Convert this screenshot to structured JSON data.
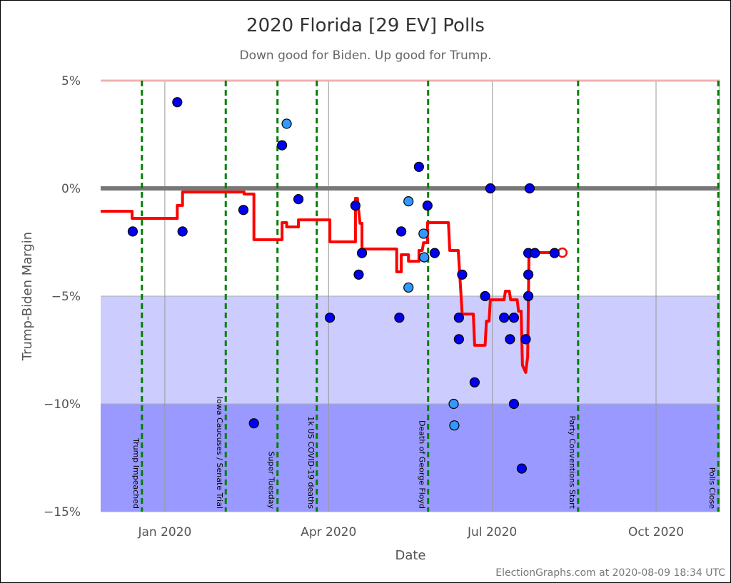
{
  "chart_data": {
    "type": "scatter",
    "title": "2020 Florida [29 EV] Polls",
    "subtitle": "Down good for Biden. Up good for Trump.",
    "x_label": "Date",
    "y_label": "Trump-Biden Margin",
    "footer": "ElectionGraphs.com at 2020-08-09 18:34 UTC",
    "xlim": [
      2019.902,
      2020.847
    ],
    "ylim": [
      -15,
      5
    ],
    "xticks": [
      {
        "value": 2020.0,
        "label": "Jan 2020"
      },
      {
        "value": 2020.25,
        "label": "Apr 2020"
      },
      {
        "value": 2020.5,
        "label": "Jul 2020"
      },
      {
        "value": 2020.75,
        "label": "Oct 2020"
      }
    ],
    "yticks": [
      {
        "value": 5,
        "label": "5%"
      },
      {
        "value": 0,
        "label": "0%"
      },
      {
        "value": -5,
        "label": "−5%"
      },
      {
        "value": -10,
        "label": "−10%"
      },
      {
        "value": -15,
        "label": "−15%"
      }
    ],
    "grid": true,
    "bands": [
      {
        "from": -5,
        "to": -10,
        "color": "#ccccff"
      },
      {
        "from": -10,
        "to": -15,
        "color": "#9999ff"
      }
    ],
    "reference_lines": [
      {
        "value": 0,
        "color": "#777777"
      },
      {
        "value": 5,
        "color": "#f2b0b0"
      }
    ],
    "events": [
      {
        "x": 2019.965,
        "label": "Trump Impeached"
      },
      {
        "x": 2020.093,
        "label": "Iowa Caucuses / Senate Trial"
      },
      {
        "x": 2020.172,
        "label": "Super Tuesday"
      },
      {
        "x": 2020.232,
        "label": "1k US COVID-19 deaths"
      },
      {
        "x": 2020.402,
        "label": "Death of George Floyd"
      },
      {
        "x": 2020.631,
        "label": "Party Conventions Start"
      },
      {
        "x": 2020.845,
        "label": "Polls Close"
      }
    ],
    "event_color": "#008000",
    "series": [
      {
        "type": "line",
        "color": "#ff0000",
        "x": [
          2019.902,
          2019.95,
          2019.95,
          2020.019,
          2020.019,
          2020.027,
          2020.027,
          2020.121,
          2020.121,
          2020.136,
          2020.136,
          2020.179,
          2020.179,
          2020.186,
          2020.186,
          2020.204,
          2020.204,
          2020.252,
          2020.252,
          2020.291,
          2020.291,
          2020.294,
          2020.298,
          2020.301,
          2020.301,
          2020.354,
          2020.354,
          2020.361,
          2020.361,
          2020.372,
          2020.372,
          2020.388,
          2020.388,
          2020.393,
          2020.395,
          2020.401,
          2020.401,
          2020.433,
          2020.435,
          2020.448,
          2020.454,
          2020.471,
          2020.473,
          2020.489,
          2020.491,
          2020.495,
          2020.497,
          2020.518,
          2020.52,
          2020.526,
          2020.528,
          2020.538,
          2020.54,
          2020.544,
          2020.546,
          2020.551,
          2020.554,
          2020.556,
          2020.607
        ],
        "values": [
          -1.06,
          -1.06,
          -1.39,
          -1.39,
          -0.79,
          -0.79,
          -0.17,
          -0.17,
          -0.26,
          -0.26,
          -2.38,
          -2.38,
          -1.59,
          -1.59,
          -1.79,
          -1.79,
          -1.46,
          -1.46,
          -2.48,
          -2.48,
          -0.46,
          -0.46,
          -1.62,
          -1.62,
          -2.81,
          -2.81,
          -3.87,
          -3.87,
          -3.08,
          -3.08,
          -3.38,
          -3.38,
          -2.88,
          -2.88,
          -2.52,
          -2.52,
          -1.59,
          -1.59,
          -2.88,
          -2.88,
          -5.83,
          -5.83,
          -7.28,
          -7.28,
          -6.16,
          -6.16,
          -5.17,
          -5.17,
          -4.77,
          -4.77,
          -5.17,
          -5.17,
          -5.7,
          -5.7,
          -8.21,
          -8.54,
          -7.81,
          -2.98,
          -2.98
        ]
      },
      {
        "color": "#0000ee",
        "x": [
          2019.951,
          2020.019,
          2020.027,
          2020.12,
          2020.136,
          2020.179,
          2020.204,
          2020.252,
          2020.291,
          2020.296,
          2020.301,
          2020.358,
          2020.361,
          2020.388,
          2020.401,
          2020.412,
          2020.449,
          2020.449,
          2020.454,
          2020.473,
          2020.489,
          2020.497,
          2020.518,
          2020.527,
          2020.533,
          2020.533,
          2020.545,
          2020.551,
          2020.555,
          2020.555,
          2020.555,
          2020.557,
          2020.565,
          2020.595
        ],
        "values": [
          -2,
          4,
          -2,
          -1,
          -10.9,
          2,
          -0.5,
          -6,
          -0.8,
          -4,
          -3,
          -6,
          -2,
          1,
          -0.8,
          -3,
          -6,
          -7,
          -4,
          -9,
          -5,
          0,
          -6,
          -7,
          -6,
          -10,
          -13,
          -7,
          -5,
          -4,
          -3,
          0,
          -3,
          -3
        ]
      },
      {
        "color": "#3399ff",
        "x": [
          2020.186,
          2020.372,
          2020.372,
          2020.395,
          2020.396,
          2020.441,
          2020.442
        ],
        "values": [
          3,
          -0.6,
          -4.6,
          -2.1,
          -3.2,
          -10,
          -11
        ]
      }
    ]
  }
}
